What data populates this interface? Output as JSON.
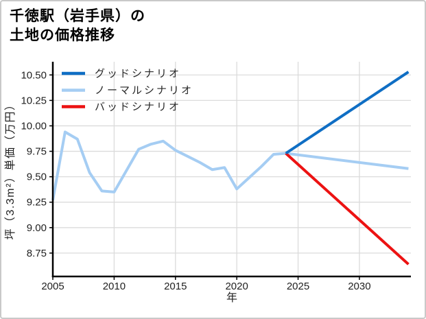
{
  "title": {
    "line1": "千徳駅（岩手県）の",
    "line2": "土地の価格推移"
  },
  "chart_data": {
    "type": "line",
    "title": "千徳駅（岩手県）の土地の価格推移",
    "xlabel": "年",
    "ylabel": "坪（3.3m²）単価（万円）",
    "xlim": [
      2005,
      2034.2
    ],
    "ylim": [
      8.52,
      10.63
    ],
    "x_ticks": [
      2005,
      2010,
      2015,
      2020,
      2025,
      2030
    ],
    "y_ticks": [
      8.75,
      9.0,
      9.25,
      9.5,
      9.75,
      10.0,
      10.25,
      10.5
    ],
    "grid": true,
    "legend": {
      "position": "upper-left",
      "items": [
        "グッドシナリオ",
        "ノーマルシナリオ",
        "バッドシナリオ"
      ]
    },
    "series": [
      {
        "name": "グッドシナリオ",
        "color": "#0F6EC4",
        "x": [
          2024,
          2034
        ],
        "values": [
          9.73,
          10.53
        ]
      },
      {
        "name": "ノーマルシナリオ",
        "color": "#A5CDF3",
        "x": [
          2005,
          2006,
          2007,
          2008,
          2009,
          2010,
          2011,
          2012,
          2013,
          2014,
          2015,
          2016,
          2017,
          2018,
          2019,
          2020,
          2021,
          2022,
          2023,
          2024,
          2034
        ],
        "values": [
          9.27,
          9.94,
          9.87,
          9.54,
          9.36,
          9.35,
          9.56,
          9.77,
          9.82,
          9.85,
          9.76,
          9.7,
          9.64,
          9.57,
          9.59,
          9.38,
          9.49,
          9.6,
          9.72,
          9.73,
          9.58
        ]
      },
      {
        "name": "バッドシナリオ",
        "color": "#EC1212",
        "x": [
          2024,
          2034
        ],
        "values": [
          9.73,
          8.64
        ]
      }
    ],
    "colors": {
      "grid": "#DBDBDB",
      "axis": "#000000",
      "tick_text": "#1F1F1F",
      "legend_text": "#262626"
    }
  }
}
